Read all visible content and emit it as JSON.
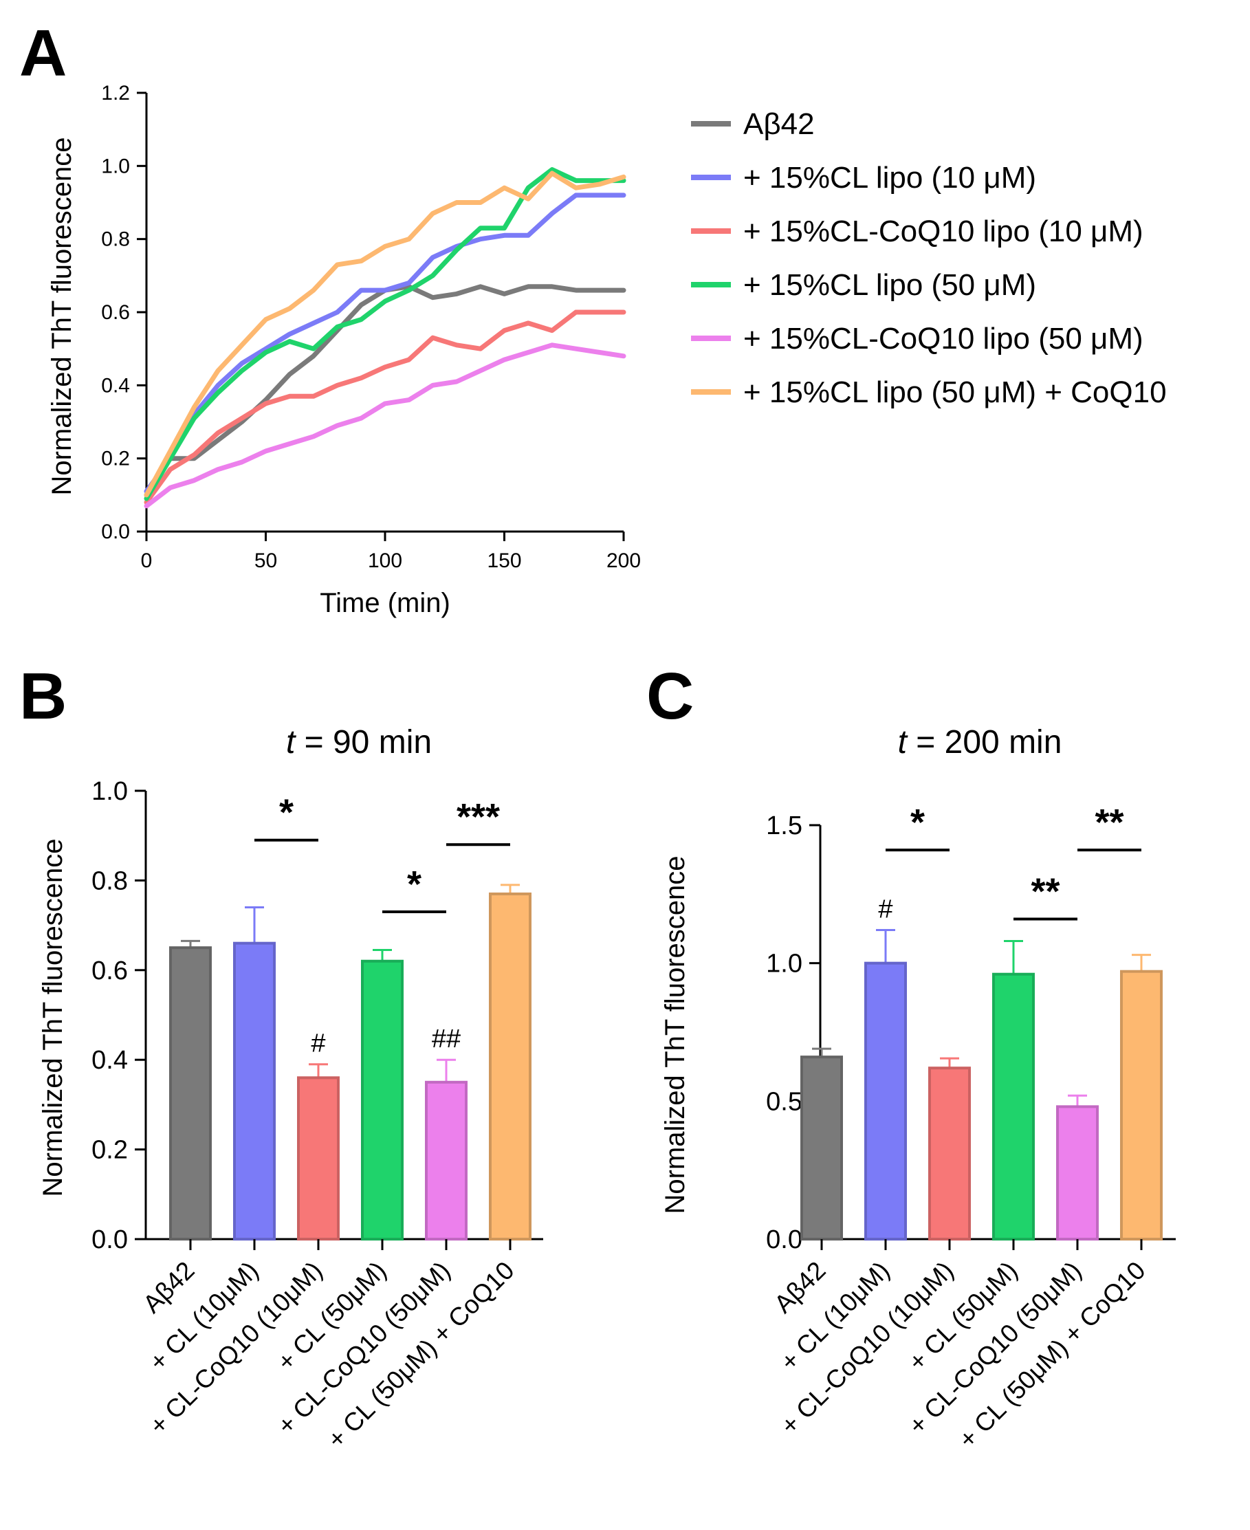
{
  "colors": {
    "abeta42": "#7a7a7a",
    "cl10": "#7b7bf7",
    "clcoq10_10": "#f77777",
    "cl50": "#1fd36b",
    "clcoq10_50": "#ec80ec",
    "cl50_coq10": "#fdb870"
  },
  "chart_data": [
    {
      "type": "line",
      "panel_label": "A",
      "xlabel": "Time (min)",
      "ylabel": "Normalized ThT fluorescence",
      "xlim": [
        0,
        200
      ],
      "ylim": [
        0,
        1.2
      ],
      "xticks": [
        0,
        50,
        100,
        150,
        200
      ],
      "yticks": [
        0.0,
        0.2,
        0.4,
        0.6,
        0.8,
        1.0,
        1.2
      ],
      "ytick_labels": [
        "0.0",
        "0.2",
        "0.4",
        "0.6",
        "0.8",
        "1.0",
        "1.2"
      ],
      "x": [
        0,
        10,
        20,
        30,
        40,
        50,
        60,
        70,
        80,
        90,
        100,
        110,
        120,
        130,
        140,
        150,
        160,
        170,
        180,
        190,
        200
      ],
      "series": [
        {
          "name": "Aβ42",
          "color_key": "abeta42",
          "values": [
            0.1,
            0.2,
            0.2,
            0.25,
            0.3,
            0.36,
            0.43,
            0.48,
            0.55,
            0.62,
            0.66,
            0.67,
            0.64,
            0.65,
            0.67,
            0.65,
            0.67,
            0.67,
            0.66,
            0.66,
            0.66
          ]
        },
        {
          "name": "+ 15%CL lipo (10 μM)",
          "color_key": "cl10",
          "values": [
            0.11,
            0.2,
            0.32,
            0.4,
            0.46,
            0.5,
            0.54,
            0.57,
            0.6,
            0.66,
            0.66,
            0.68,
            0.75,
            0.78,
            0.8,
            0.81,
            0.81,
            0.87,
            0.92,
            0.92,
            0.92
          ]
        },
        {
          "name": "+ 15%CL-CoQ10 lipo (10 μM)",
          "color_key": "clcoq10_10",
          "values": [
            0.08,
            0.17,
            0.21,
            0.27,
            0.31,
            0.35,
            0.37,
            0.37,
            0.4,
            0.42,
            0.45,
            0.47,
            0.53,
            0.51,
            0.5,
            0.55,
            0.57,
            0.55,
            0.6,
            0.6,
            0.6
          ]
        },
        {
          "name": "+ 15%CL lipo (50 μM)",
          "color_key": "cl50",
          "values": [
            0.09,
            0.2,
            0.31,
            0.38,
            0.44,
            0.49,
            0.52,
            0.5,
            0.56,
            0.58,
            0.63,
            0.66,
            0.7,
            0.77,
            0.83,
            0.83,
            0.94,
            0.99,
            0.96,
            0.96,
            0.96
          ]
        },
        {
          "name": "+ 15%CL-CoQ10 lipo (50 μM)",
          "color_key": "clcoq10_50",
          "values": [
            0.07,
            0.12,
            0.14,
            0.17,
            0.19,
            0.22,
            0.24,
            0.26,
            0.29,
            0.31,
            0.35,
            0.36,
            0.4,
            0.41,
            0.44,
            0.47,
            0.49,
            0.51,
            0.5,
            0.49,
            0.48
          ]
        },
        {
          "name": "+ 15%CL lipo (50 μM) + CoQ10",
          "color_key": "cl50_coq10",
          "values": [
            0.1,
            0.22,
            0.34,
            0.44,
            0.51,
            0.58,
            0.61,
            0.66,
            0.73,
            0.74,
            0.78,
            0.8,
            0.87,
            0.9,
            0.9,
            0.94,
            0.91,
            0.98,
            0.94,
            0.95,
            0.97
          ]
        }
      ],
      "legend": "right"
    },
    {
      "type": "bar",
      "panel_label": "B",
      "title_italic": "t",
      "title_rest": " = 90 min",
      "ylabel": "Normalized ThT fluorescence",
      "ylim": [
        0,
        1.0
      ],
      "yticks": [
        0.0,
        0.2,
        0.4,
        0.6,
        0.8,
        1.0
      ],
      "ytick_labels": [
        "0.0",
        "0.2",
        "0.4",
        "0.6",
        "0.8",
        "1.0"
      ],
      "categories": [
        "Aβ42",
        "+ CL (10μM)",
        "+ CL-CoQ10 (10μM)",
        "+ CL (50μM)",
        "+ CL-CoQ10 (50μM)",
        "+ CL (50μM) + CoQ10"
      ],
      "color_keys": [
        "abeta42",
        "cl10",
        "clcoq10_10",
        "cl50",
        "clcoq10_50",
        "cl50_coq10"
      ],
      "values": [
        0.65,
        0.66,
        0.36,
        0.62,
        0.35,
        0.77
      ],
      "errors": [
        0.015,
        0.08,
        0.03,
        0.025,
        0.05,
        0.02
      ],
      "hash_marks": [
        {
          "bar": 2,
          "label": "#"
        },
        {
          "bar": 4,
          "label": "##"
        }
      ],
      "significance": [
        {
          "from": 1,
          "to": 2,
          "y": 0.89,
          "label": "*"
        },
        {
          "from": 3,
          "to": 4,
          "y": 0.73,
          "label": "*"
        },
        {
          "from": 4,
          "to": 5,
          "y": 0.88,
          "label": "***"
        }
      ]
    },
    {
      "type": "bar",
      "panel_label": "C",
      "title_italic": "t",
      "title_rest": " = 200 min",
      "ylabel": "Normalized ThT fluorescence",
      "ylim": [
        0,
        1.5
      ],
      "yticks": [
        0.0,
        0.5,
        1.0,
        1.5
      ],
      "ytick_labels": [
        "0.0",
        "0.5",
        "1.0",
        "1.5"
      ],
      "categories": [
        "Aβ42",
        "+ CL (10μM)",
        "+ CL-CoQ10 (10μM)",
        "+ CL (50μM)",
        "+ CL-CoQ10 (50μM)",
        "+ CL (50μM) + CoQ10"
      ],
      "color_keys": [
        "abeta42",
        "cl10",
        "clcoq10_10",
        "cl50",
        "clcoq10_50",
        "cl50_coq10"
      ],
      "values": [
        0.66,
        1.0,
        0.62,
        0.96,
        0.48,
        0.97
      ],
      "errors": [
        0.03,
        0.12,
        0.035,
        0.12,
        0.04,
        0.06
      ],
      "hash_marks": [
        {
          "bar": 1,
          "label": "#"
        }
      ],
      "significance": [
        {
          "from": 1,
          "to": 2,
          "y": 1.41,
          "label": "*"
        },
        {
          "from": 3,
          "to": 4,
          "y": 1.16,
          "label": "**"
        },
        {
          "from": 4,
          "to": 5,
          "y": 1.41,
          "label": "**"
        }
      ]
    }
  ]
}
